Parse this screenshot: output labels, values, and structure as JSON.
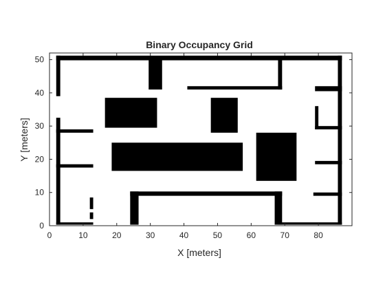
{
  "chart_data": {
    "type": "heatmap",
    "title": "Binary Occupancy Grid",
    "xlabel": "X [meters]",
    "ylabel": "Y [meters]",
    "xlim": [
      0,
      90
    ],
    "ylim": [
      0,
      52
    ],
    "xticks": [
      0,
      10,
      20,
      30,
      40,
      50,
      60,
      70,
      80
    ],
    "yticks": [
      0,
      10,
      20,
      30,
      40,
      50
    ],
    "grid": false,
    "colors": {
      "occupied": "#000000",
      "free": "#ffffff",
      "axis": "#262626"
    },
    "occupied_regions": [
      {
        "name": "wall-top",
        "x": [
          2,
          87
        ],
        "y": [
          49.8,
          51.2
        ]
      },
      {
        "name": "wall-left-upper",
        "x": [
          2,
          3.2
        ],
        "y": [
          39,
          51.2
        ]
      },
      {
        "name": "wall-left-lower",
        "x": [
          2,
          3.2
        ],
        "y": [
          0.3,
          32.5
        ]
      },
      {
        "name": "wall-right",
        "x": [
          85.8,
          87
        ],
        "y": [
          0.3,
          51.2
        ]
      },
      {
        "name": "wall-bottom-left",
        "x": [
          2,
          13
        ],
        "y": [
          0.3,
          1.0
        ]
      },
      {
        "name": "wall-bottom-right",
        "x": [
          68,
          87
        ],
        "y": [
          0.3,
          1.0
        ]
      },
      {
        "name": "block-top-pillar",
        "x": [
          29.5,
          33.5
        ],
        "y": [
          41,
          50
        ]
      },
      {
        "name": "divider-top-right",
        "x": [
          68,
          69.2
        ],
        "y": [
          41,
          50
        ]
      },
      {
        "name": "shelf-upper",
        "x": [
          41,
          69.2
        ],
        "y": [
          41,
          42
        ]
      },
      {
        "name": "corner-right-top",
        "x": [
          79,
          87
        ],
        "y": [
          40.5,
          42
        ]
      },
      {
        "name": "room-left-top-wall",
        "x": [
          2,
          13
        ],
        "y": [
          28,
          29
        ]
      },
      {
        "name": "room-left-mid-wall",
        "x": [
          2,
          13
        ],
        "y": [
          17.5,
          18.5
        ]
      },
      {
        "name": "room-left-door",
        "x": [
          12,
          13
        ],
        "y": [
          5,
          8.5
        ]
      },
      {
        "name": "room-left-door-2",
        "x": [
          12,
          13
        ],
        "y": [
          2,
          4
        ]
      },
      {
        "name": "block-1",
        "x": [
          16.5,
          32
        ],
        "y": [
          29.5,
          38.5
        ]
      },
      {
        "name": "block-2",
        "x": [
          48,
          56
        ],
        "y": [
          28,
          38.5
        ]
      },
      {
        "name": "block-long",
        "x": [
          18.5,
          57.5
        ],
        "y": [
          16.5,
          25
        ]
      },
      {
        "name": "block-3",
        "x": [
          61.5,
          73.5
        ],
        "y": [
          13.5,
          28
        ]
      },
      {
        "name": "right-room-wall-top",
        "x": [
          79,
          87
        ],
        "y": [
          29,
          30
        ]
      },
      {
        "name": "right-room-post",
        "x": [
          79,
          80
        ],
        "y": [
          29,
          36
        ]
      },
      {
        "name": "right-room-wall-bottom",
        "x": [
          79,
          87
        ],
        "y": [
          18.5,
          19.5
        ]
      },
      {
        "name": "right-lower-shelf",
        "x": [
          78.5,
          87
        ],
        "y": [
          9,
          10
        ]
      },
      {
        "name": "arch-top",
        "x": [
          24,
          69.2
        ],
        "y": [
          9,
          10.3
        ]
      },
      {
        "name": "arch-left",
        "x": [
          24,
          26.5
        ],
        "y": [
          0.3,
          10.3
        ]
      },
      {
        "name": "arch-right",
        "x": [
          67,
          69.2
        ],
        "y": [
          0.3,
          10.3
        ]
      }
    ]
  }
}
